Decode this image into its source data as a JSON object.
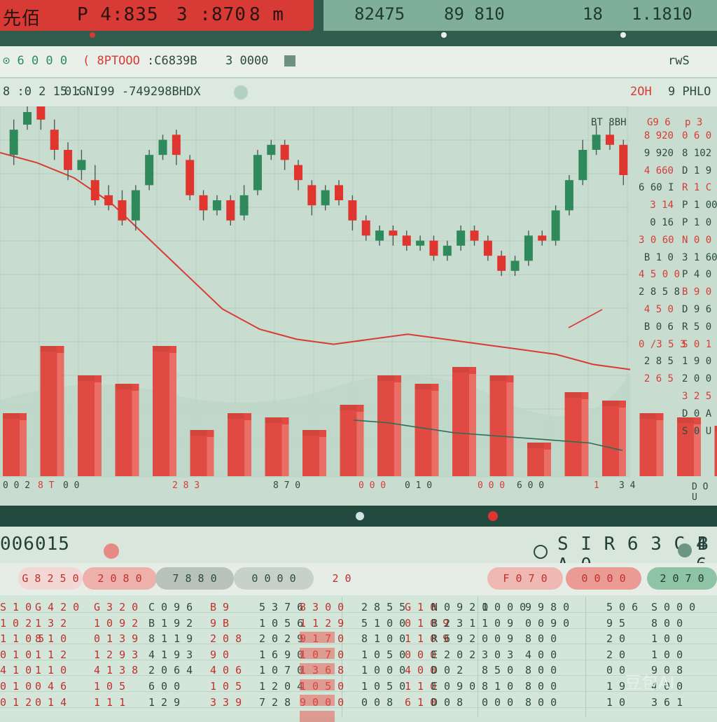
{
  "topbar": {
    "red_texts": [
      "先佰 ",
      "P 4:835",
      "3 :870",
      "8 m"
    ],
    "green_texts": [
      "82475",
      "89 810",
      "18 "
    ],
    "price": "1.1810"
  },
  "toolbar": {
    "left": "⊙ 6 0 0 0",
    "red_item": "( 8PTOOO",
    "mid": ":C6839B",
    "mid2": "3 0000",
    "right": "rwS"
  },
  "infobar": {
    "left": "8 :0 2 15 :",
    "code": "01GNI99 -749298BHDX",
    "right_red": "2OH",
    "right": "9 PHLO"
  },
  "side_header": [
    "BT 8BH",
    "G9 6",
    "p 3"
  ],
  "price_rows": [
    {
      "a": "8 920",
      "b": "0 6 0"
    },
    {
      "a": "9 920",
      "b": "8 102"
    },
    {
      "a": "4 660",
      "b": "D 1 9 0 8"
    },
    {
      "a": "6 60 I",
      "b": "R 1 C 0"
    },
    {
      "a": "3 14",
      "b": "P 1 00 0"
    },
    {
      "a": "0 16",
      "b": "P 1 0 0"
    },
    {
      "a": "3 0 60",
      "b": "N 0 0 0"
    },
    {
      "a": "B 1 0",
      "b": "3 1 60"
    },
    {
      "a": "4 5 0 0",
      "b": "P 4 0 0"
    },
    {
      "a": "2 8 5 8",
      "b": "B 9 0 0"
    },
    {
      "a": "4 5 0",
      "b": "D 9 6 0"
    },
    {
      "a": "B 0 6",
      "b": "R 5 0 9"
    },
    {
      "a": "0 /3 5 3",
      "b": "S 0 1 0"
    },
    {
      "a": "2 8 5",
      "b": "1 9 0 0"
    },
    {
      "a": "2 6 5",
      "b": "2 0 0 0"
    },
    {
      "a": "",
      "b": "3 2 5 0"
    },
    {
      "a": "",
      "b": "D 0 A N"
    },
    {
      "a": "",
      "b": "S 0 U A"
    }
  ],
  "x_labels": [
    "0 0 2",
    "8 T",
    "0 0",
    "2 8 3",
    "8 7 0",
    "0 0 0",
    "0 1 0",
    "0 0 0",
    "6 0 0",
    "1",
    "3 4"
  ],
  "right_axis_bottom": "D O U",
  "section": {
    "left": "006015",
    "right": "S I R 6 3 C B A 0",
    "right2": "4 6"
  },
  "tabs": [
    "G 8 2 5 0",
    "2 0 8 0 ",
    "7 8 8 0",
    "0 0 0 0",
    "2 0",
    "F 0 7 0",
    "0 0 0 0",
    "2 0 7 0"
  ],
  "table": {
    "cols": [
      "S 1 0\n1 0 2\n1 1 0 5\n0 1 0\n4 1 0\n0 1 0\n0 1 2",
      "G 4 2 0\n1 3 2\n8 1 0\n1 1 2\n1 1 0\n0 4 6\n0 1 4",
      "G 3 2 0\n1 0 9 2\n0 1 3 9\n1 2 9 3\n4 1 3 8\n1 0 5\n1 1 1",
      "C 0 9 6\nB 1 9 2\n8 1 1 9\n4 1 9 3\n2 0 6 4\n6 0 0\n1 2 9",
      "B 9\n9 B\n2 0 8\n9 0\n4 0 6\n1 0 5\n3 3 9",
      "5 3 7 6\n1 0 5 6\n2 0 2 9\n1 6 9 0\n1 0 7 0\n1 2 0 4\n7 2 8",
      "8 3 0 0\n1 1 2 9\n9 1 7 0\n1 0 7 0\n1 3 6 8\n1 0 5 0\n9 0 0 0",
      "2 8 5 5\n5 1 0 0\n8 1 0 0\n1 0 5 0\n1 0 0 0\n1 0 5 0\n0 0 8",
      "G 1 0\n0 1 0 9\n1 1 0 9\n0 0 0\n4 0 0\n1 1 0\n6 1 0",
      "N 0 9 2 0\nB 2 3 1\nR 6 9 2\nE 2 0 2\nD 0 2\nE 0 9 0\nD 0 8",
      "1 0 0 0\n1 0 9\n0 0 9\n3 0 3\n8 5 0\n8 1 0\n0 0 0",
      "9 9 8 0\n0 0 9 0\n8 0 0\n4 0 0\n8 0 0\n8 0 0\n8 0 0",
      "5 0 6\n9 5\n2 0\n2 0\n0 0\n1 9\n1 0",
      "S 0 0 0\n8 0 0\n1 0 0\n1 0 0\n9 0 8\n4 0 0\n3 6 1"
    ]
  },
  "watermark": "豆包AI",
  "colors": {
    "red": "#d83a35",
    "green": "#2e8a5a",
    "bg": "#c8ddd0",
    "dark": "#234a3e"
  },
  "chart_data": {
    "type": "candlestick",
    "candles": [
      {
        "o": 28,
        "c": 38,
        "h": 42,
        "l": 24
      },
      {
        "o": 40,
        "c": 45,
        "h": 48,
        "l": 38
      },
      {
        "o": 50,
        "c": 42,
        "h": 52,
        "l": 38
      },
      {
        "o": 38,
        "c": 30,
        "h": 42,
        "l": 26
      },
      {
        "o": 30,
        "c": 22,
        "h": 33,
        "l": 18
      },
      {
        "o": 22,
        "c": 26,
        "h": 30,
        "l": 18
      },
      {
        "o": 18,
        "c": 10,
        "h": 24,
        "l": 8
      },
      {
        "o": 12,
        "c": 8,
        "h": 16,
        "l": 6
      },
      {
        "o": 10,
        "c": 2,
        "h": 14,
        "l": 0
      },
      {
        "o": 2,
        "c": 14,
        "h": 16,
        "l": -2
      },
      {
        "o": 16,
        "c": 28,
        "h": 30,
        "l": 14
      },
      {
        "o": 28,
        "c": 34,
        "h": 36,
        "l": 26
      },
      {
        "o": 36,
        "c": 28,
        "h": 38,
        "l": 24
      },
      {
        "o": 26,
        "c": 12,
        "h": 28,
        "l": 10
      },
      {
        "o": 12,
        "c": 6,
        "h": 14,
        "l": 2
      },
      {
        "o": 6,
        "c": 10,
        "h": 12,
        "l": 4
      },
      {
        "o": 10,
        "c": 2,
        "h": 12,
        "l": 0
      },
      {
        "o": 4,
        "c": 12,
        "h": 16,
        "l": 2
      },
      {
        "o": 14,
        "c": 28,
        "h": 30,
        "l": 12
      },
      {
        "o": 28,
        "c": 32,
        "h": 34,
        "l": 26
      },
      {
        "o": 32,
        "c": 26,
        "h": 34,
        "l": 22
      },
      {
        "o": 24,
        "c": 18,
        "h": 26,
        "l": 14
      },
      {
        "o": 16,
        "c": 8,
        "h": 18,
        "l": 4
      },
      {
        "o": 8,
        "c": 14,
        "h": 16,
        "l": 6
      },
      {
        "o": 16,
        "c": 10,
        "h": 18,
        "l": 8
      },
      {
        "o": 10,
        "c": 2,
        "h": 12,
        "l": -2
      },
      {
        "o": 2,
        "c": -4,
        "h": 4,
        "l": -6
      },
      {
        "o": -6,
        "c": -2,
        "h": 0,
        "l": -8
      },
      {
        "o": -2,
        "c": -4,
        "h": 0,
        "l": -8
      },
      {
        "o": -4,
        "c": -8,
        "h": -2,
        "l": -10
      },
      {
        "o": -8,
        "c": -6,
        "h": -4,
        "l": -10
      },
      {
        "o": -6,
        "c": -12,
        "h": -4,
        "l": -14
      },
      {
        "o": -12,
        "c": -8,
        "h": -6,
        "l": -14
      },
      {
        "o": -8,
        "c": -2,
        "h": 0,
        "l": -10
      },
      {
        "o": -2,
        "c": -6,
        "h": 0,
        "l": -8
      },
      {
        "o": -6,
        "c": -12,
        "h": -4,
        "l": -14
      },
      {
        "o": -12,
        "c": -18,
        "h": -10,
        "l": -20
      },
      {
        "o": -18,
        "c": -14,
        "h": -12,
        "l": -20
      },
      {
        "o": -14,
        "c": -4,
        "h": -2,
        "l": -16
      },
      {
        "o": -4,
        "c": -6,
        "h": -2,
        "l": -8
      },
      {
        "o": -6,
        "c": 6,
        "h": 8,
        "l": -8
      },
      {
        "o": 6,
        "c": 18,
        "h": 20,
        "l": 4
      },
      {
        "o": 18,
        "c": 30,
        "h": 34,
        "l": 16
      },
      {
        "o": 30,
        "c": 36,
        "h": 40,
        "l": 28
      },
      {
        "o": 36,
        "c": 32,
        "h": 40,
        "l": 30
      },
      {
        "o": 32,
        "c": 20,
        "h": 34,
        "l": 16
      }
    ],
    "volume": [
      30,
      62,
      48,
      44,
      62,
      22,
      30,
      28,
      22,
      34,
      48,
      44,
      52,
      48,
      16,
      40,
      36,
      30,
      28,
      24
    ],
    "ma_line": [
      40,
      36,
      30,
      20,
      6,
      -8,
      -22,
      -30,
      -34,
      -36,
      -34,
      -32,
      -34,
      -36,
      -38,
      -40,
      -44,
      -46
    ],
    "vol_line": [
      20,
      19,
      17,
      15,
      14,
      13,
      12,
      11,
      8
    ]
  }
}
